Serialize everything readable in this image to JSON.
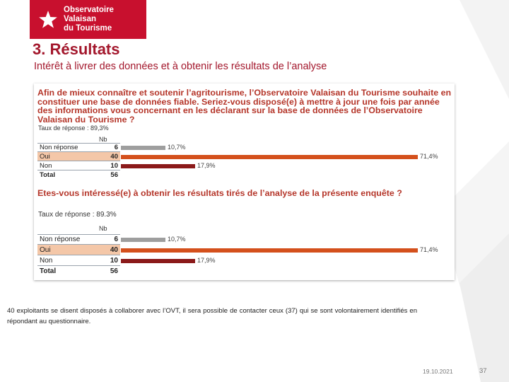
{
  "logo": {
    "line1": "Observatoire Valaisan",
    "line2": "du Tourisme"
  },
  "title": "3. Résultats",
  "subtitle": "Intérêt à livrer des données et à obtenir les résultats de l’analyse",
  "question1": {
    "text": "Afin de mieux connaître et soutenir l’agritourisme, l’Observatoire Valaisan du Tourisme souhaite en constituer une base de données fiable. Seriez-vous disposé(e) à mettre à jour une fois par année des informations vous concernant en les déclarant sur la base de données de l’Observatoire Valaisan du Tourisme ?",
    "response_rate": "Taux de réponse : 89,3%",
    "nb_header": "Nb"
  },
  "question2": {
    "text": "Etes-vous intéressé(e) à obtenir les résultats tirés de l’analyse de la présente enquête ?",
    "response_rate": "Taux de réponse : 89.3%",
    "nb_header": "Nb"
  },
  "chart_data": [
    {
      "type": "bar",
      "categories": [
        "Non réponse",
        "Oui",
        "Non"
      ],
      "values": [
        6,
        40,
        10
      ],
      "percent_labels": [
        "10,7%",
        "71,4%",
        "17,9%"
      ],
      "total_label": "Total",
      "total": 56,
      "colors": [
        "#9e9e9e",
        "#d4501c",
        "#8b1a1a"
      ]
    },
    {
      "type": "bar",
      "categories": [
        "Non réponse",
        "Oui",
        "Non"
      ],
      "values": [
        6,
        40,
        10
      ],
      "percent_labels": [
        "10,7%",
        "71,4%",
        "17,9%"
      ],
      "total_label": "Total",
      "total": 56,
      "colors": [
        "#9e9e9e",
        "#d4501c",
        "#8b1a1a"
      ]
    }
  ],
  "body_text": "40 exploitants se disent disposés à collaborer avec l’OVT, il sera possible de contacter ceux (37) qui se sont volontairement identifiés en répondant au questionnaire.",
  "date": "19.10.2021",
  "page_number": "37",
  "colors": {
    "brand_red": "#c8102e",
    "title_red": "#a3172c"
  }
}
